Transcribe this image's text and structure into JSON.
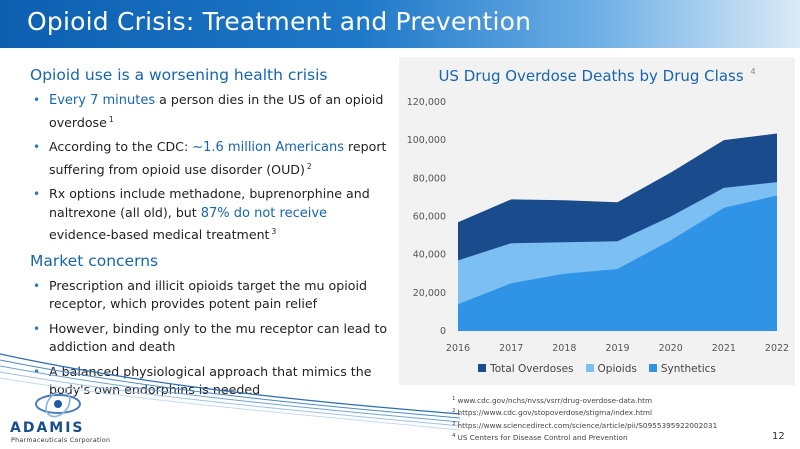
{
  "title": "Opioid Crisis: Treatment and Prevention",
  "sections": [
    {
      "heading": "Opioid use is a worsening health crisis",
      "bullets": [
        {
          "highlight": "Every 7 minutes",
          "text": " a person dies in the US of an opioid overdose",
          "ref": "1"
        },
        {
          "pre": "According to the CDC: ",
          "highlight": "~1.6 million Americans",
          "text": " report suffering from opioid use disorder (OUD)",
          "ref": "2"
        },
        {
          "pre": "Rx options include methadone, buprenorphine and naltrexone (all old), but ",
          "highlight": "87% do not receive",
          "text": " evidence-based medical treatment",
          "ref": "3"
        }
      ]
    },
    {
      "heading": "Market concerns",
      "bullets": [
        {
          "text": "Prescription and illicit opioids target the mu opioid receptor, which provides potent pain relief"
        },
        {
          "text": "However, binding only to the mu receptor can lead to addiction and death"
        },
        {
          "text": "A balanced physiological approach that mimics the body's own endorphins is needed"
        }
      ]
    }
  ],
  "bullet_glyph": "•",
  "chart_data": {
    "type": "area",
    "title": "US Drug Overdose Deaths by Drug Class",
    "title_ref": "4",
    "x": [
      "2016",
      "2017",
      "2018",
      "2019",
      "2020",
      "2021",
      "2022"
    ],
    "yticks": [
      "0",
      "20,000",
      "40,000",
      "60,000",
      "80,000",
      "100,000",
      "120,000"
    ],
    "ylim": [
      0,
      120000
    ],
    "series": [
      {
        "name": "Total Overdoses",
        "color": "#1a4b8c",
        "values": [
          57000,
          69000,
          68500,
          67500,
          83000,
          100000,
          103500
        ]
      },
      {
        "name": "Opioids",
        "color": "#7cbff2",
        "values": [
          37000,
          46000,
          46500,
          47000,
          60000,
          75000,
          78000
        ]
      },
      {
        "name": "Synthetics",
        "color": "#2f94e6",
        "values": [
          14000,
          25000,
          30000,
          32500,
          47500,
          64500,
          71000
        ]
      }
    ]
  },
  "references": [
    {
      "num": "1",
      "text": "www.cdc.gov/nchs/nvss/vsrr/drug-overdose-data.htm"
    },
    {
      "num": "2",
      "text": "https://www.cdc.gov/stopoverdose/stigma/index.html"
    },
    {
      "num": "3",
      "text": "https://www.sciencedirect.com/science/article/pii/S0955395922002031"
    },
    {
      "num": "4",
      "text": "US Centers for Disease Control and Prevention"
    }
  ],
  "logo": {
    "name": "ADAMIS",
    "subtitle": "Pharmaceuticals Corporation"
  },
  "page_number": "12",
  "colors": {
    "brand": "#1765ad",
    "title_bar": "#0d5fb0"
  }
}
